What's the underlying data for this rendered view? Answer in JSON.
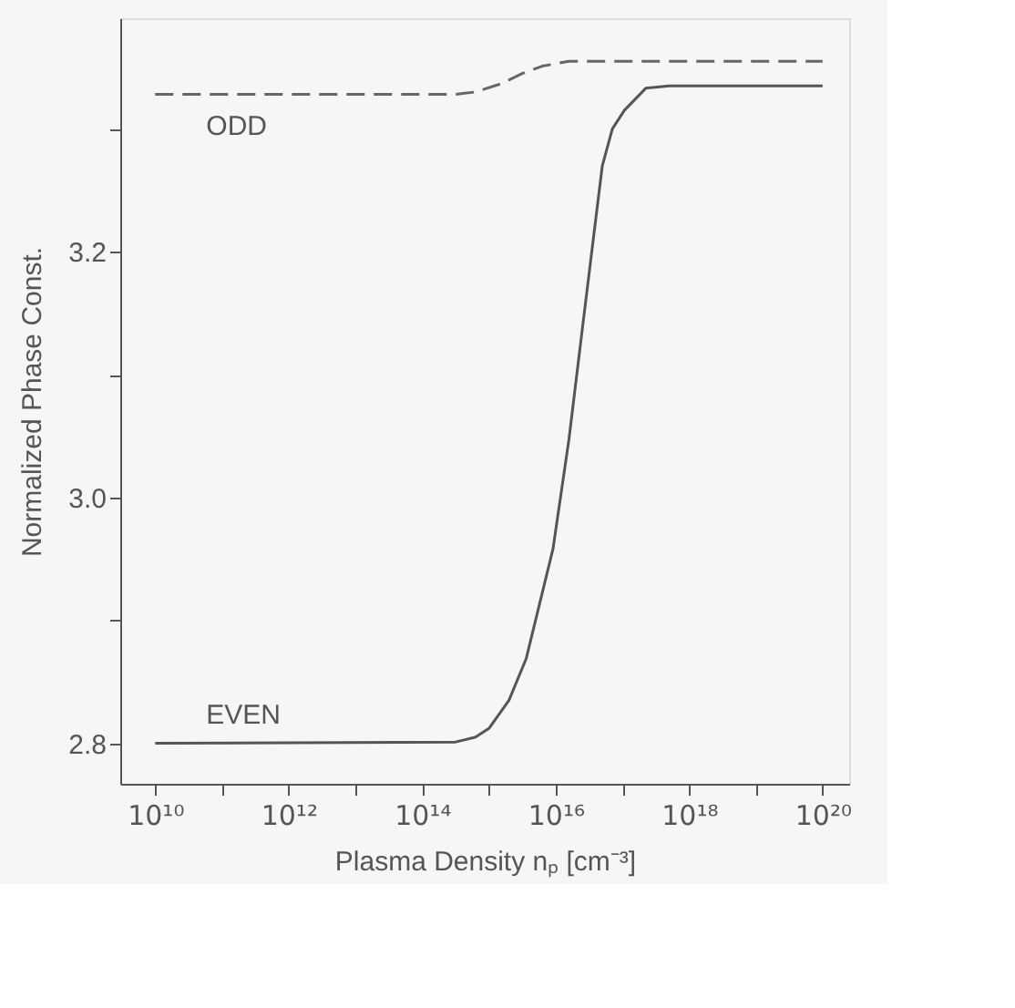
{
  "chart_data": {
    "type": "line",
    "xlabel": "Plasma Density  nₚ [cm⁻³]",
    "ylabel": "Normalized Phase Const.",
    "log": "x",
    "xlim": [
      3000000000.0,
      2.5e+20
    ],
    "ylim": [
      2.767,
      3.39
    ],
    "xticks": [
      {
        "value": 10000000000.0,
        "label": "10¹⁰"
      },
      {
        "value": 100000000000.0,
        "label": null
      },
      {
        "value": 1000000000000.0,
        "label": "10¹²"
      },
      {
        "value": 10000000000000.0,
        "label": null
      },
      {
        "value": 100000000000000.0,
        "label": "10¹⁴"
      },
      {
        "value": 1000000000000000.0,
        "label": null
      },
      {
        "value": 1e+16,
        "label": "10¹⁶"
      },
      {
        "value": 1e+17,
        "label": null
      },
      {
        "value": 1e+18,
        "label": "10¹⁸"
      },
      {
        "value": 1e+19,
        "label": null
      },
      {
        "value": 1e+20,
        "label": "10²⁰"
      }
    ],
    "yticks": [
      {
        "value": 2.8,
        "label": "2.8"
      },
      {
        "value": 2.9,
        "label": null
      },
      {
        "value": 3.0,
        "label": "3.0"
      },
      {
        "value": 3.1,
        "label": null
      },
      {
        "value": 3.2,
        "label": "3.2"
      },
      {
        "value": 3.3,
        "label": null
      }
    ],
    "grid": false,
    "marker": "none",
    "series": [
      {
        "name": "ODD",
        "color": "#666666",
        "line_style": "dashed",
        "x": [
          10000000000.0,
          316000000000000.0,
          631000000000000.0,
          1580000000000000.0,
          3160000000000000.0,
          6310000000000000.0,
          1.58e+16,
          1e+20
        ],
        "values": [
          3.328,
          3.328,
          3.33,
          3.337,
          3.345,
          3.351,
          3.355,
          3.355
        ]
      },
      {
        "name": "EVEN",
        "color": "#555555",
        "line_style": "solid",
        "x": [
          10000000000.0,
          316000000000000.0,
          631000000000000.0,
          1000000000000000.0,
          2000000000000000.0,
          3630000000000000.0,
          9120000000000000.0,
          1.58e+16,
          2.51e+16,
          3.98e+16,
          5.01e+16,
          7.08e+16,
          1.07e+17,
          2.24e+17,
          5.01e+17,
          1e+20
        ],
        "values": [
          2.8,
          2.801,
          2.805,
          2.812,
          2.835,
          2.869,
          2.958,
          3.047,
          3.137,
          3.226,
          3.27,
          3.3,
          3.315,
          3.333,
          3.335,
          3.335
        ]
      }
    ]
  }
}
